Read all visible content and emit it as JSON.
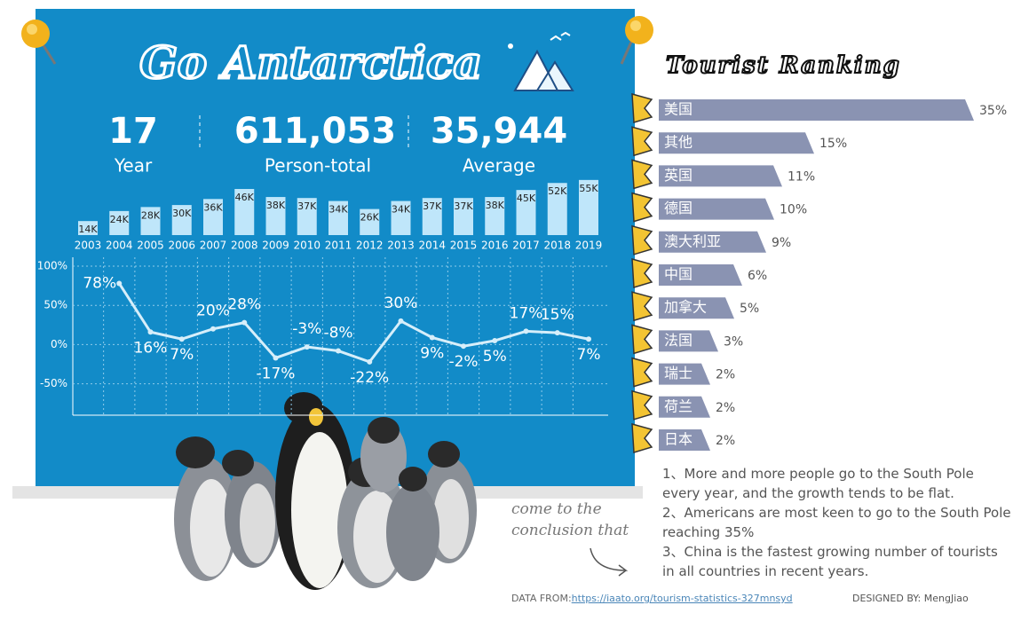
{
  "header": {
    "title": "Go Antarctica"
  },
  "kpis": [
    {
      "value": "17",
      "label": "Year"
    },
    {
      "value": "611,053",
      "label": "Person-total"
    },
    {
      "value": "35,944",
      "label": "Average"
    }
  ],
  "chart_data": [
    {
      "type": "bar",
      "color": "#bfe6fa",
      "categories": [
        "2003",
        "2004",
        "2005",
        "2006",
        "2007",
        "2008",
        "2009",
        "2010",
        "2011",
        "2012",
        "2013",
        "2014",
        "2015",
        "2016",
        "2017",
        "2018",
        "2019"
      ],
      "values": [
        14,
        24,
        28,
        30,
        36,
        46,
        38,
        37,
        34,
        26,
        34,
        37,
        37,
        38,
        45,
        52,
        55
      ],
      "value_labels": [
        "14K",
        "24K",
        "28K",
        "30K",
        "36K",
        "46K",
        "38K",
        "37K",
        "34K",
        "26K",
        "34K",
        "37K",
        "37K",
        "38K",
        "45K",
        "52K",
        "55K"
      ]
    },
    {
      "type": "line",
      "color": "#d6eefa",
      "grid": true,
      "values": [
        78,
        16,
        7,
        20,
        28,
        -17,
        -3,
        -8,
        -22,
        30,
        9,
        -2,
        5,
        17,
        15,
        7
      ],
      "value_labels": [
        "78%",
        "16%",
        "7%",
        "20%",
        "28%",
        "-17%",
        "-3%",
        "-8%",
        "-22%",
        "30%",
        "9%",
        "-2%",
        "5%",
        "17%",
        "15%",
        "7%"
      ],
      "ylim": [
        -90,
        100
      ],
      "yticks": [
        {
          "value": 100,
          "label": "100%"
        },
        {
          "value": 50,
          "label": "50%"
        },
        {
          "value": 0,
          "label": "0%"
        },
        {
          "value": -50,
          "label": "-50%"
        }
      ]
    },
    {
      "type": "hbar",
      "title": "Tourist Ranking",
      "color": "#8a93b2",
      "categories": [
        "美国",
        "其他",
        "英国",
        "德国",
        "澳大利亚",
        "中国",
        "加拿大",
        "法国",
        "瑞士",
        "荷兰",
        "日本"
      ],
      "values": [
        35,
        15,
        11,
        10,
        9,
        6,
        5,
        3,
        2,
        2,
        2
      ],
      "value_labels": [
        "35%",
        "15%",
        "11%",
        "10%",
        "9%",
        "6%",
        "5%",
        "3%",
        "2%",
        "2%",
        "2%"
      ]
    }
  ],
  "conclusion": {
    "aside": "come to the conclusion that",
    "items": [
      "1、More and more people go to the South Pole every year, and the growth tends to be flat.",
      "2、Americans are most keen to go to the South Pole reaching 35%",
      "3、China is the fastest growing number of tourists in all countries in recent years."
    ]
  },
  "footer": {
    "source_label": "DATA FROM:",
    "source_url": "https://iaato.org/tourism-statistics-327mnsyd",
    "designer_label": "DESIGNED BY:",
    "designer": "MengJiao"
  }
}
